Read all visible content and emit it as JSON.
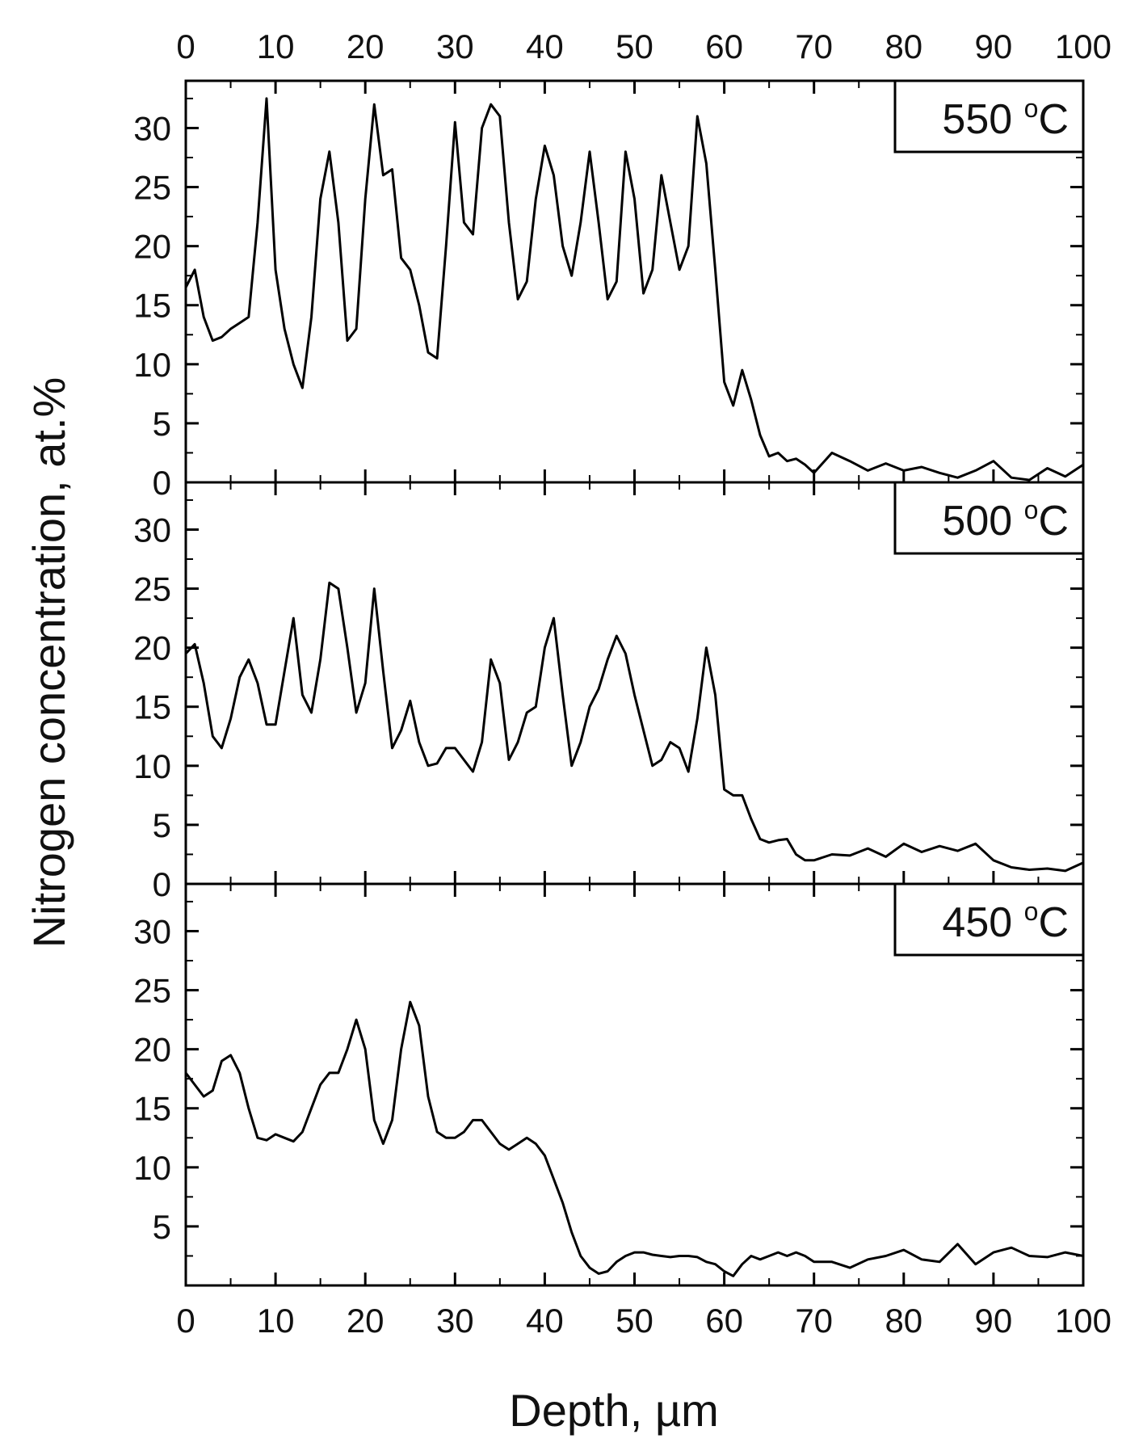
{
  "chart_data": {
    "type": "line",
    "xlabel": "Depth, µm",
    "ylabel": "Nitrogen concentration, at.%",
    "xlim": [
      0,
      100
    ],
    "x_ticks": [
      0,
      10,
      20,
      30,
      40,
      50,
      60,
      70,
      80,
      90,
      100
    ],
    "x_tick_labels": [
      "0",
      "10",
      "20",
      "30",
      "40",
      "50",
      "60",
      "70",
      "80",
      "90",
      "100"
    ],
    "panels": [
      {
        "name": "550 °C",
        "label_value": "550",
        "label_unit": "oC",
        "ylim": [
          0,
          34
        ],
        "y_ticks": [
          0,
          5,
          10,
          15,
          20,
          25,
          30
        ],
        "y_tick_labels": [
          "0",
          "5",
          "10",
          "15",
          "20",
          "25",
          "30"
        ],
        "x": [
          0,
          1,
          2,
          3,
          4,
          5,
          6,
          7,
          8,
          9,
          10,
          11,
          12,
          13,
          14,
          15,
          16,
          17,
          18,
          19,
          20,
          21,
          22,
          23,
          24,
          25,
          26,
          27,
          28,
          29,
          30,
          31,
          32,
          33,
          34,
          35,
          36,
          37,
          38,
          39,
          40,
          41,
          42,
          43,
          44,
          45,
          46,
          47,
          48,
          49,
          50,
          51,
          52,
          53,
          54,
          55,
          56,
          57,
          58,
          59,
          60,
          61,
          62,
          63,
          64,
          65,
          66,
          67,
          68,
          69,
          70,
          72,
          74,
          76,
          78,
          80,
          82,
          84,
          86,
          88,
          90,
          92,
          94,
          96,
          98,
          100
        ],
        "values": [
          16.5,
          18,
          14,
          12,
          12.3,
          13,
          13.5,
          14,
          22,
          32.5,
          18,
          13,
          10,
          8,
          14,
          24,
          28,
          22,
          12,
          13,
          24,
          32,
          26,
          26.5,
          19,
          18,
          15,
          11,
          10.5,
          20,
          30.5,
          22,
          21,
          30,
          32,
          31,
          22,
          15.5,
          17,
          24,
          28.5,
          26,
          20,
          17.5,
          22,
          28,
          22,
          15.5,
          17,
          28,
          24,
          16,
          18,
          26,
          22,
          18,
          20,
          31,
          27,
          18,
          8.5,
          6.5,
          9.5,
          7,
          4,
          2.2,
          2.5,
          1.8,
          2,
          1.5,
          0.8,
          2.5,
          1.8,
          1,
          1.6,
          1,
          1.3,
          0.8,
          0.4,
          1,
          1.8,
          0.4,
          0.2,
          1.2,
          0.5,
          1.5
        ]
      },
      {
        "name": "500 °C",
        "label_value": "500",
        "label_unit": "oC",
        "ylim": [
          0,
          34
        ],
        "y_ticks": [
          0,
          5,
          10,
          15,
          20,
          25,
          30
        ],
        "y_tick_labels": [
          "0",
          "5",
          "10",
          "15",
          "20",
          "25",
          "30"
        ],
        "x": [
          0,
          1,
          2,
          3,
          4,
          5,
          6,
          7,
          8,
          9,
          10,
          11,
          12,
          13,
          14,
          15,
          16,
          17,
          18,
          19,
          20,
          21,
          22,
          23,
          24,
          25,
          26,
          27,
          28,
          29,
          30,
          31,
          32,
          33,
          34,
          35,
          36,
          37,
          38,
          39,
          40,
          41,
          42,
          43,
          44,
          45,
          46,
          47,
          48,
          49,
          50,
          51,
          52,
          53,
          54,
          55,
          56,
          57,
          58,
          59,
          60,
          61,
          62,
          63,
          64,
          65,
          66,
          67,
          68,
          69,
          70,
          72,
          74,
          76,
          78,
          80,
          82,
          84,
          86,
          88,
          90,
          92,
          94,
          96,
          98,
          100
        ],
        "values": [
          19.5,
          20.3,
          17,
          12.5,
          11.5,
          14,
          17.5,
          19,
          17,
          13.5,
          13.5,
          18,
          22.5,
          16,
          14.5,
          19,
          25.5,
          25,
          20,
          14.5,
          17,
          25,
          18,
          11.5,
          13,
          15.5,
          12,
          10,
          10.2,
          11.5,
          11.5,
          10.5,
          9.5,
          12,
          19,
          17,
          10.5,
          12,
          14.5,
          15,
          20,
          22.5,
          16,
          10,
          12,
          15,
          16.5,
          19,
          21,
          19.5,
          16,
          13,
          10,
          10.5,
          12,
          11.5,
          9.5,
          14,
          20,
          16,
          8,
          7.5,
          7.5,
          5.5,
          3.8,
          3.5,
          3.7,
          3.8,
          2.5,
          2,
          2,
          2.5,
          2.4,
          3,
          2.3,
          3.4,
          2.7,
          3.2,
          2.8,
          3.4,
          2,
          1.4,
          1.2,
          1.3,
          1.1,
          1.8
        ]
      },
      {
        "name": "450 °C",
        "label_value": "450",
        "label_unit": "oC",
        "ylim": [
          0,
          34
        ],
        "y_ticks": [
          5,
          10,
          15,
          20,
          25,
          30
        ],
        "y_tick_labels": [
          "5",
          "10",
          "15",
          "20",
          "25",
          "30"
        ],
        "x": [
          0,
          1,
          2,
          3,
          4,
          5,
          6,
          7,
          8,
          9,
          10,
          11,
          12,
          13,
          14,
          15,
          16,
          17,
          18,
          19,
          20,
          21,
          22,
          23,
          24,
          25,
          26,
          27,
          28,
          29,
          30,
          31,
          32,
          33,
          34,
          35,
          36,
          37,
          38,
          39,
          40,
          41,
          42,
          43,
          44,
          45,
          46,
          47,
          48,
          49,
          50,
          51,
          52,
          53,
          54,
          55,
          56,
          57,
          58,
          59,
          60,
          61,
          62,
          63,
          64,
          65,
          66,
          67,
          68,
          69,
          70,
          72,
          74,
          76,
          78,
          80,
          82,
          84,
          86,
          88,
          90,
          92,
          94,
          96,
          98,
          100
        ],
        "values": [
          18,
          17,
          16,
          16.5,
          19,
          19.5,
          18,
          15,
          12.5,
          12.3,
          12.8,
          12.5,
          12.2,
          13,
          15,
          17,
          18,
          18,
          20,
          22.5,
          20,
          14,
          12,
          14,
          20,
          24,
          22,
          16,
          13,
          12.5,
          12.5,
          13,
          14,
          14,
          13,
          12,
          11.5,
          12,
          12.5,
          12,
          11,
          9,
          7,
          4.5,
          2.5,
          1.5,
          1,
          1.2,
          2,
          2.5,
          2.8,
          2.8,
          2.6,
          2.5,
          2.4,
          2.5,
          2.5,
          2.4,
          2,
          1.8,
          1.2,
          0.8,
          1.8,
          2.5,
          2.2,
          2.5,
          2.8,
          2.5,
          2.8,
          2.5,
          2,
          2,
          1.5,
          2.2,
          2.5,
          3,
          2.2,
          2,
          3.5,
          1.8,
          2.8,
          3.2,
          2.5,
          2.4,
          2.8,
          2.5
        ]
      }
    ]
  }
}
